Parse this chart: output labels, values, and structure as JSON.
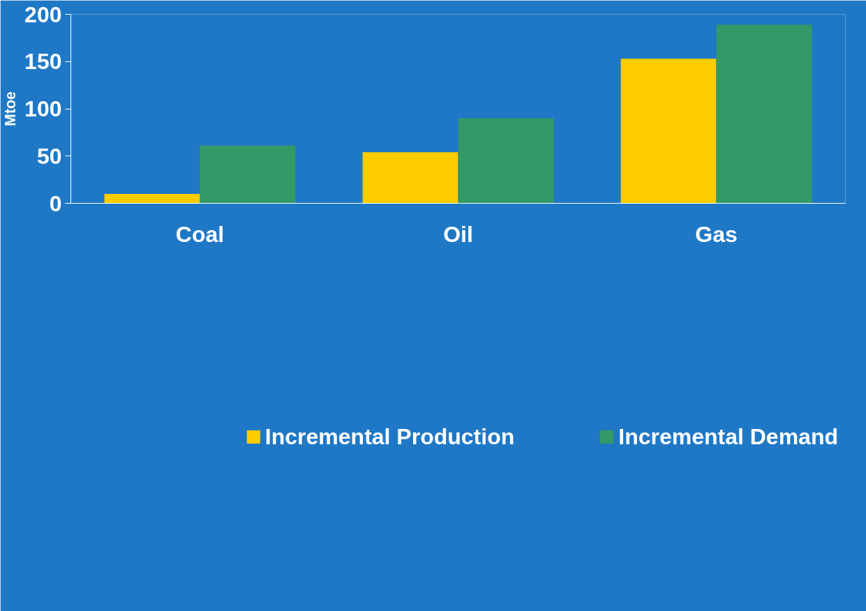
{
  "chart_data": {
    "type": "bar",
    "ylabel": "Mtoe",
    "categories": [
      "Coal",
      "Oil",
      "Gas"
    ],
    "series": [
      {
        "name": "Incremental Production",
        "color": "#ffcc00",
        "values": [
          10,
          54,
          153
        ]
      },
      {
        "name": "Incremental Demand",
        "color": "#339966",
        "values": [
          61,
          90,
          189
        ]
      }
    ],
    "ylim": [
      0,
      200
    ],
    "yticks": [
      0,
      50,
      100,
      150,
      200
    ],
    "grid": false,
    "legend": "bottom"
  }
}
